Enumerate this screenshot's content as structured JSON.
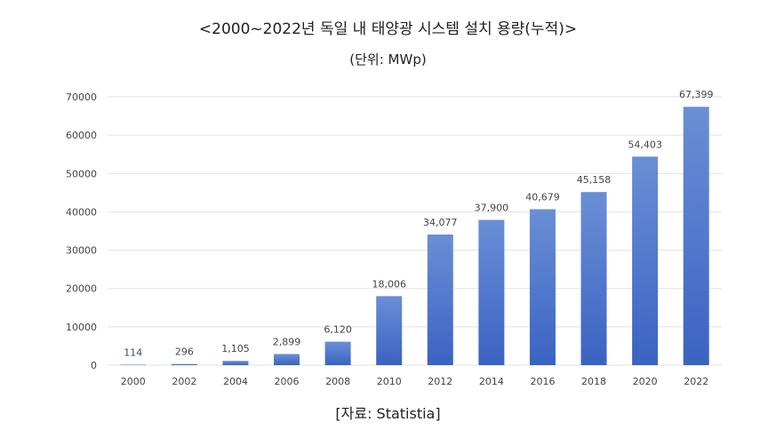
{
  "title": "<2000~2022년 독일 내 태양광 시스템 설치 용량(누적)>",
  "subtitle": "(단위: MWp)",
  "source": "[자료: Statistia]",
  "chart_data": {
    "type": "bar",
    "title": "<2000~2022년 독일 내 태양광 시스템 설치 용량(누적)>",
    "unit": "(단위: MWp)",
    "xlabel": "",
    "ylabel": "",
    "categories": [
      "2000",
      "2002",
      "2004",
      "2006",
      "2008",
      "2010",
      "2012",
      "2014",
      "2016",
      "2018",
      "2020",
      "2022"
    ],
    "values": [
      114,
      296,
      1105,
      2899,
      6120,
      18006,
      34077,
      37900,
      40679,
      45158,
      54403,
      67399
    ],
    "value_labels": [
      "114",
      "296",
      "1,105",
      "2,899",
      "6,120",
      "18,006",
      "34,077",
      "37,900",
      "40,679",
      "45,158",
      "54,403",
      "67,399"
    ],
    "ylim": [
      0,
      70000
    ],
    "yticks": [
      0,
      10000,
      20000,
      30000,
      40000,
      50000,
      60000,
      70000
    ],
    "ytick_labels": [
      "0",
      "10000",
      "20000",
      "30000",
      "40000",
      "50000",
      "60000",
      "70000"
    ],
    "grid": true,
    "legend": "none",
    "colors": {
      "bar_top": "#6a8fd6",
      "bar_bottom": "#3a63c2",
      "grid": "#e2e2e2",
      "text": "#444444"
    }
  }
}
